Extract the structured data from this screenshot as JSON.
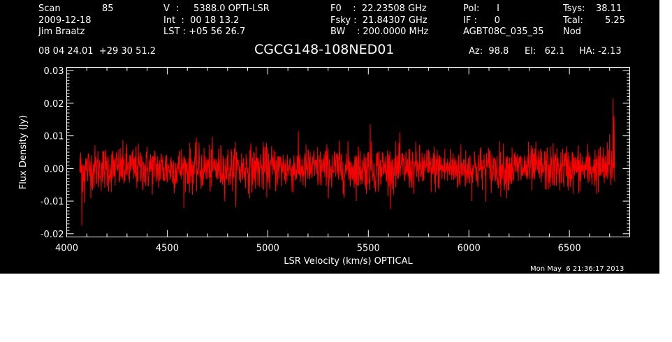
{
  "header": {
    "col1": {
      "scan_label": "Scan",
      "scan_value": "85",
      "date": "2009-12-18",
      "observer": "Jim Braatz"
    },
    "col2": {
      "v_label": "V",
      "v_value": ":     5388.0 OPTI-LSR",
      "int_value": "Int  :  00 18 13.2",
      "lst_value": "LST : +05 56 26.7"
    },
    "col3": {
      "f0": "F0    :  22.23508 GHz",
      "fsky": "Fsky :  21.84307 GHz",
      "bw": "BW    : 200.0000 MHz"
    },
    "col4": {
      "pol": "Pol:      I",
      "if": "IF :      0",
      "session": "AGBT08C_035_35"
    },
    "col5": {
      "tsys_label": "Tsys:",
      "tsys_value": "38.11",
      "tcal_label": "Tcal:",
      "tcal_value": "5.25",
      "mode": "Nod"
    },
    "coords": "08 04 24.01  +29 30 51.2",
    "source": "CGCG148-108NED01",
    "az": "Az:  98.8",
    "el": "El:   62.1",
    "ha": "HA: -2.13"
  },
  "timestamp": "Mon May  6 21:36:17 2013",
  "chart_data": {
    "type": "line",
    "title": "CGCG148-108NED01",
    "xlabel": "LSR Velocity (km/s) OPTICAL",
    "ylabel": "Flux Density (Jy)",
    "xlim": [
      4000,
      6800
    ],
    "ylim": [
      -0.021,
      0.031
    ],
    "x_ticks": [
      4000,
      4500,
      5000,
      5500,
      6000,
      6500
    ],
    "x_tick_labels": [
      "4000",
      "4500",
      "5000",
      "5500",
      "6000",
      "6500"
    ],
    "y_ticks": [
      -0.02,
      -0.01,
      0.0,
      0.01,
      0.02,
      0.03
    ],
    "y_tick_labels": [
      "-0.02",
      "-0.01",
      "0.00",
      "0.01",
      "0.02",
      "0.03"
    ],
    "series": [
      {
        "color": "#ff0000",
        "x_range": [
          4065,
          6725
        ],
        "baseline": 0.0,
        "noise_sigma": 0.0035,
        "envelope_min": -0.0125,
        "envelope_max": 0.0135,
        "features": [
          {
            "x": 4075,
            "y": -0.0175
          },
          {
            "x": 4090,
            "y": -0.0105
          },
          {
            "x": 5510,
            "y": 0.0135
          },
          {
            "x": 6700,
            "y": 0.0105
          },
          {
            "x": 6718,
            "y": 0.0215
          },
          {
            "x": 6722,
            "y": 0.016
          }
        ]
      }
    ]
  }
}
